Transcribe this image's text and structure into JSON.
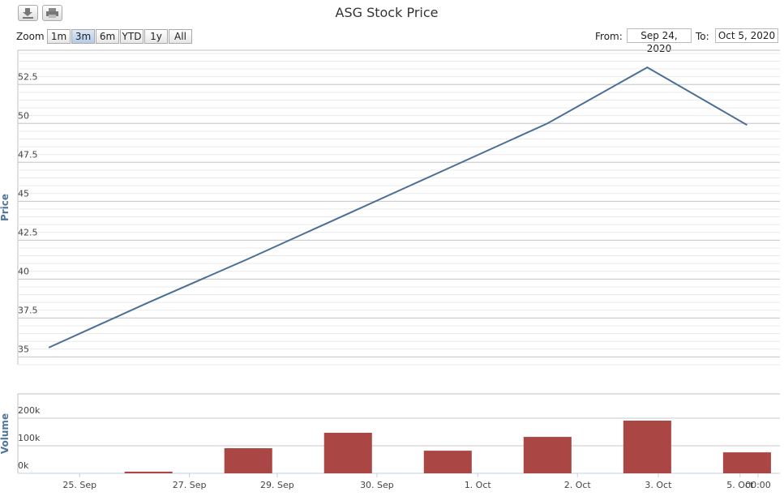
{
  "range_selector": {
    "label": "Zoom",
    "buttons": [
      "1m",
      "3m",
      "6m",
      "YTD",
      "1y",
      "All"
    ],
    "selected": 1
  },
  "date_inputs": {
    "from_label": "From:",
    "from": "Sep 24, 2020",
    "to_label": "To:",
    "to": "Oct 5, 2020"
  },
  "chart_data": [
    {
      "type": "line",
      "title": "ASG Stock Price",
      "y_label": "Price",
      "categories": [
        null,
        null,
        null,
        null,
        null,
        null,
        null,
        null
      ],
      "values": [
        35.6,
        38.5,
        41.3,
        44.2,
        47.1,
        50.0,
        53.6,
        49.9
      ],
      "color": "#4a6f96",
      "xlim": [
        -0.31,
        7.33
      ],
      "ylim": [
        34.5,
        54.7
      ],
      "yticks": [
        35,
        37.5,
        40,
        42.5,
        45,
        47.5,
        50,
        52.5
      ],
      "grid": true,
      "minor_grid": true
    },
    {
      "type": "bar",
      "y_label": "Volume",
      "categories": [
        null,
        null,
        null,
        null,
        null,
        null,
        null,
        null
      ],
      "values": [
        0,
        6000,
        91000,
        147000,
        82000,
        132000,
        191000,
        76000
      ],
      "color": "#aa4643",
      "xlim": [
        -0.31,
        7.33
      ],
      "ylim": [
        0,
        288000
      ],
      "yticks": [
        {
          "value": 0,
          "label": "0k"
        },
        {
          "value": 100000,
          "label": "100k"
        },
        {
          "value": 200000,
          "label": "200k"
        }
      ],
      "grid": true,
      "xticks": [
        {
          "value": 0.31,
          "label": "25. Sep"
        },
        {
          "value": 1.41,
          "label": "27. Sep"
        },
        {
          "value": 2.29,
          "label": "29. Sep"
        },
        {
          "value": 3.29,
          "label": "30. Sep"
        },
        {
          "value": 4.3,
          "label": "1. Oct"
        },
        {
          "value": 5.3,
          "label": "2. Oct"
        },
        {
          "value": 6.11,
          "label": "3. Oct"
        },
        {
          "value": 6.93,
          "label": "5. Oct"
        },
        {
          "value": 7.11,
          "label": "00:00"
        }
      ]
    }
  ]
}
